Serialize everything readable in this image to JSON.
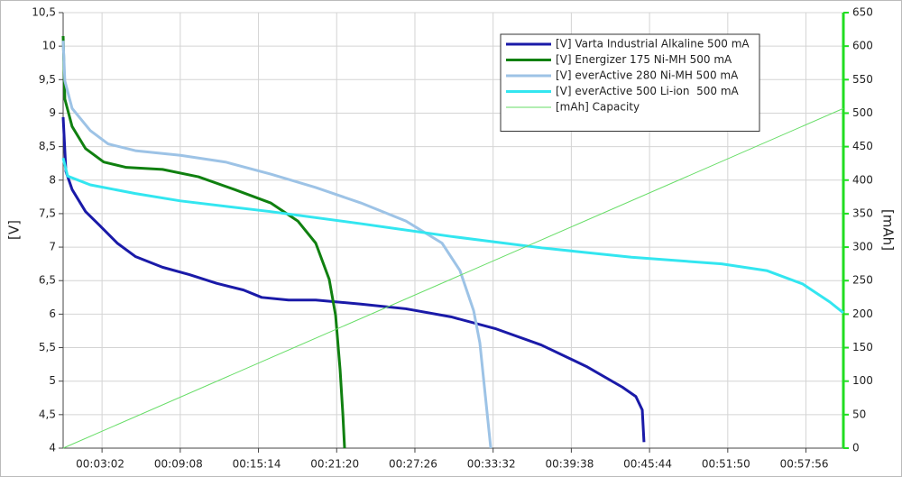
{
  "chart_data": {
    "type": "line",
    "ylabel": "[V]",
    "y2label": "[mAh]",
    "xlim": [
      0,
      3651
    ],
    "ylim": [
      4,
      10.5
    ],
    "y2lim": [
      0,
      650
    ],
    "xticks": [
      {
        "value": 182,
        "label": "00:03:02"
      },
      {
        "value": 548,
        "label": "00:09:08"
      },
      {
        "value": 914,
        "label": "00:15:14"
      },
      {
        "value": 1280,
        "label": "00:21:20"
      },
      {
        "value": 1646,
        "label": "00:27:26"
      },
      {
        "value": 2012,
        "label": "00:33:32"
      },
      {
        "value": 2378,
        "label": "00:39:38"
      },
      {
        "value": 2744,
        "label": "00:45:44"
      },
      {
        "value": 3110,
        "label": "00:51:50"
      },
      {
        "value": 3476,
        "label": "00:57:56"
      }
    ],
    "yticks": [
      4,
      {
        "value": 4.5,
        "label": "4,5"
      },
      5,
      {
        "value": 5.5,
        "label": "5,5"
      },
      6,
      {
        "value": 6.5,
        "label": "6,5"
      },
      7,
      {
        "value": 7.5,
        "label": "7,5"
      },
      8,
      {
        "value": 8.5,
        "label": "8,5"
      },
      9,
      {
        "value": 9.5,
        "label": "9,5"
      },
      10,
      {
        "value": 10.5,
        "label": "10,5"
      }
    ],
    "y2ticks": [
      0,
      50,
      100,
      150,
      200,
      250,
      300,
      350,
      400,
      450,
      500,
      550,
      600,
      650
    ],
    "grid": true,
    "legend": "upper right",
    "y2color": "#22dd22",
    "series": [
      {
        "name": "[V] Varta Industrial Alkaline 500 mA",
        "color": "#1a1aa8",
        "x": [
          0,
          13,
          42,
          105,
          169,
          253,
          338,
          465,
          591,
          718,
          844,
          929,
          1055,
          1182,
          1393,
          1604,
          1815,
          2026,
          2237,
          2448,
          2617,
          2680,
          2710,
          2718
        ],
        "values": [
          8.94,
          8.13,
          7.86,
          7.53,
          7.33,
          7.06,
          6.86,
          6.7,
          6.59,
          6.46,
          6.36,
          6.25,
          6.21,
          6.21,
          6.15,
          6.08,
          5.96,
          5.78,
          5.54,
          5.22,
          4.91,
          4.77,
          4.57,
          4.09
        ]
      },
      {
        "name": "[V] Energizer 175 Ni-MH 500 mA",
        "color": "#108010",
        "x": [
          0,
          8,
          42,
          105,
          190,
          296,
          465,
          633,
          802,
          971,
          1098,
          1182,
          1245,
          1275,
          1296,
          1309,
          1317
        ],
        "values": [
          10.15,
          9.21,
          8.8,
          8.47,
          8.27,
          8.19,
          8.16,
          8.05,
          7.86,
          7.66,
          7.39,
          7.06,
          6.52,
          5.98,
          5.17,
          4.5,
          4
        ]
      },
      {
        "name": "[V] everActive 280 Ni-MH 500 mA",
        "color": "#9dc3e6",
        "x": [
          0,
          8,
          42,
          127,
          211,
          338,
          549,
          760,
          971,
          1182,
          1393,
          1604,
          1773,
          1857,
          1921,
          1950,
          1976,
          2001
        ],
        "values": [
          10.08,
          9.48,
          9.07,
          8.74,
          8.54,
          8.44,
          8.37,
          8.27,
          8.09,
          7.89,
          7.66,
          7.39,
          7.06,
          6.65,
          6.05,
          5.57,
          4.77,
          4
        ]
      },
      {
        "name": "[V] everActive 500 Li-ion  500 mA",
        "color": "#33e6f0",
        "x": [
          0,
          21,
          127,
          338,
          549,
          971,
          1393,
          1815,
          2237,
          2659,
          3081,
          3292,
          3461,
          3588,
          3651
        ],
        "values": [
          8.33,
          8.06,
          7.93,
          7.8,
          7.69,
          7.53,
          7.35,
          7.16,
          6.99,
          6.85,
          6.75,
          6.65,
          6.45,
          6.18,
          6.02
        ]
      },
      {
        "name": "[mAh] Capacity",
        "color": "#66dd66",
        "axis": "y2",
        "x": [
          0,
          3651
        ],
        "values": [
          0,
          507
        ]
      }
    ]
  }
}
